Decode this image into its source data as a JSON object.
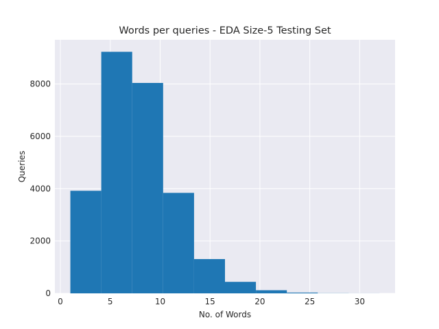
{
  "chart_data": {
    "type": "bar",
    "title": "Words per queries - EDA Size-5 Testing Set",
    "xlabel": "No. of Words",
    "ylabel": "Queries",
    "bins": [
      {
        "x0": 1.0,
        "x1": 4.1,
        "value": 3920
      },
      {
        "x0": 4.1,
        "x1": 7.2,
        "value": 9230
      },
      {
        "x0": 7.2,
        "x1": 10.3,
        "value": 8040
      },
      {
        "x0": 10.3,
        "x1": 13.4,
        "value": 3840
      },
      {
        "x0": 13.4,
        "x1": 16.5,
        "value": 1310
      },
      {
        "x0": 16.5,
        "x1": 19.6,
        "value": 440
      },
      {
        "x0": 19.6,
        "x1": 22.7,
        "value": 120
      },
      {
        "x0": 22.7,
        "x1": 25.8,
        "value": 30
      },
      {
        "x0": 25.8,
        "x1": 28.9,
        "value": 5
      },
      {
        "x0": 28.9,
        "x1": 32.0,
        "value": 2
      }
    ],
    "xlim": [
      -0.55,
      33.55
    ],
    "ylim": [
      0,
      9690
    ],
    "xticks": [
      0,
      5,
      10,
      15,
      20,
      25,
      30
    ],
    "yticks": [
      0,
      2000,
      4000,
      6000,
      8000
    ],
    "grid": true,
    "bar_color": "#1f77b4",
    "background_color": "#eaeaf2"
  }
}
